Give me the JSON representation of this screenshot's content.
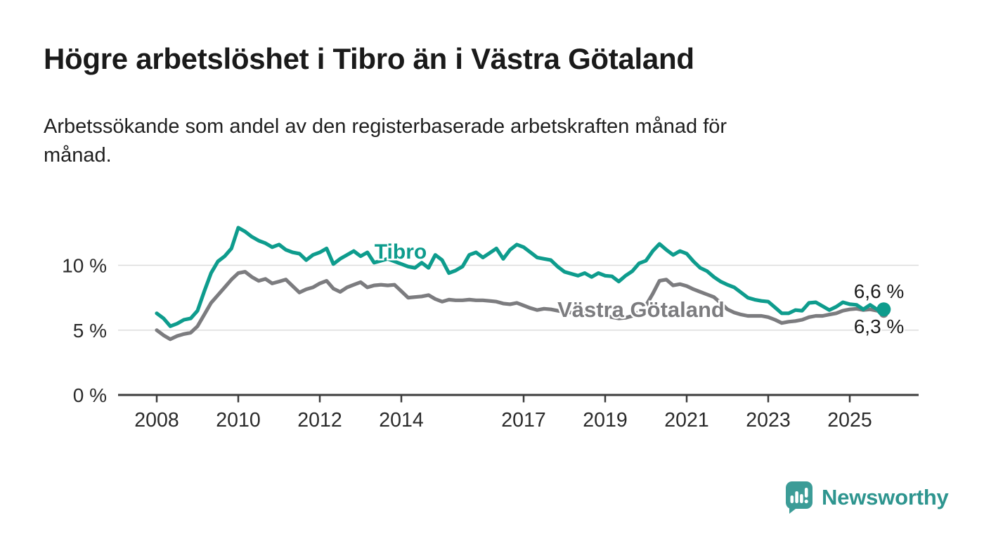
{
  "header": {
    "title": "Högre arbetslöshet i Tibro än i Västra Götaland",
    "subtitle": "Arbetssökande som andel av den registerbaserade arbetskraften månad för\nmånad."
  },
  "branding": {
    "logo_text": "Newsworthy",
    "logo_icon": "speech-bubble-bar-chart",
    "logo_bubble_color": "#3C9C97",
    "logo_text_color": "#2E958F"
  },
  "chart_data": {
    "type": "line",
    "title": "Högre arbetslöshet i Tibro än i Västra Götaland",
    "subtitle": "Arbetssökande som andel av den registerbaserade arbetskraften månad för månad.",
    "unit": "%",
    "grid": "horizontal",
    "legend_position": "inline-labels",
    "x_start_year": 2008.0,
    "x_interval_years": 0.1666667,
    "xlim": [
      2007.05,
      2026.7
    ],
    "ylim": [
      0,
      14.5
    ],
    "x_ticks": [
      2008,
      2010,
      2012,
      2014,
      2017,
      2019,
      2021,
      2023,
      2025
    ],
    "y_ticks": [
      {
        "value": 0,
        "label": "0 %"
      },
      {
        "value": 5,
        "label": "5 %"
      },
      {
        "value": 10,
        "label": "10 %"
      }
    ],
    "axis_color": "#3c3c3c",
    "grid_color": "#dcdcdc",
    "tick_label_color": "#2b2b2b",
    "annotation_color": "#1c1c1c",
    "series": [
      {
        "name": "Tibro",
        "color": "#0E9C8D",
        "end_label": "6,6 %",
        "values": [
          6.3,
          5.9,
          5.3,
          5.5,
          5.8,
          5.9,
          6.5,
          8.0,
          9.4,
          10.3,
          10.7,
          11.3,
          12.9,
          12.6,
          12.2,
          11.9,
          11.7,
          11.4,
          11.6,
          11.2,
          11.0,
          10.9,
          10.4,
          10.8,
          11.0,
          11.3,
          10.1,
          10.5,
          10.8,
          11.1,
          10.7,
          11.0,
          10.2,
          10.35,
          10.5,
          10.3,
          10.1,
          9.9,
          9.8,
          10.2,
          9.8,
          10.8,
          10.4,
          9.4,
          9.6,
          9.9,
          10.8,
          11.0,
          10.6,
          10.95,
          11.3,
          10.5,
          11.2,
          11.6,
          11.4,
          11.0,
          10.6,
          10.5,
          10.4,
          9.9,
          9.5,
          9.35,
          9.2,
          9.4,
          9.1,
          9.4,
          9.2,
          9.15,
          8.75,
          9.2,
          9.55,
          10.15,
          10.35,
          11.1,
          11.65,
          11.2,
          10.8,
          11.1,
          10.9,
          10.3,
          9.8,
          9.55,
          9.1,
          8.75,
          8.5,
          8.3,
          7.9,
          7.5,
          7.35,
          7.25,
          7.2,
          6.75,
          6.3,
          6.3,
          6.55,
          6.5,
          7.1,
          7.15,
          6.85,
          6.55,
          6.8,
          7.15,
          7.0,
          6.95,
          6.6,
          6.95,
          6.6,
          6.6
        ]
      },
      {
        "name": "Västra Götaland",
        "color": "#7C7C7F",
        "end_label": "6,3 %",
        "values": [
          5.0,
          4.6,
          4.3,
          4.55,
          4.7,
          4.8,
          5.3,
          6.2,
          7.1,
          7.7,
          8.3,
          8.9,
          9.4,
          9.5,
          9.1,
          8.8,
          8.95,
          8.6,
          8.75,
          8.9,
          8.4,
          7.9,
          8.15,
          8.3,
          8.6,
          8.8,
          8.2,
          7.95,
          8.3,
          8.5,
          8.7,
          8.3,
          8.45,
          8.5,
          8.45,
          8.5,
          8.0,
          7.5,
          7.55,
          7.6,
          7.7,
          7.4,
          7.2,
          7.35,
          7.3,
          7.3,
          7.35,
          7.3,
          7.3,
          7.25,
          7.2,
          7.05,
          7.0,
          7.1,
          6.9,
          6.7,
          6.55,
          6.65,
          6.6,
          6.5,
          6.4,
          6.35,
          6.3,
          6.4,
          6.3,
          6.2,
          6.1,
          6.0,
          5.9,
          5.95,
          6.1,
          6.4,
          6.9,
          7.8,
          8.8,
          8.9,
          8.45,
          8.55,
          8.4,
          8.15,
          7.95,
          7.75,
          7.55,
          7.1,
          6.6,
          6.35,
          6.2,
          6.1,
          6.1,
          6.1,
          6.0,
          5.8,
          5.55,
          5.65,
          5.7,
          5.8,
          6.0,
          6.1,
          6.1,
          6.2,
          6.3,
          6.5,
          6.6,
          6.65,
          6.55,
          6.6,
          6.5,
          6.3
        ]
      }
    ]
  }
}
